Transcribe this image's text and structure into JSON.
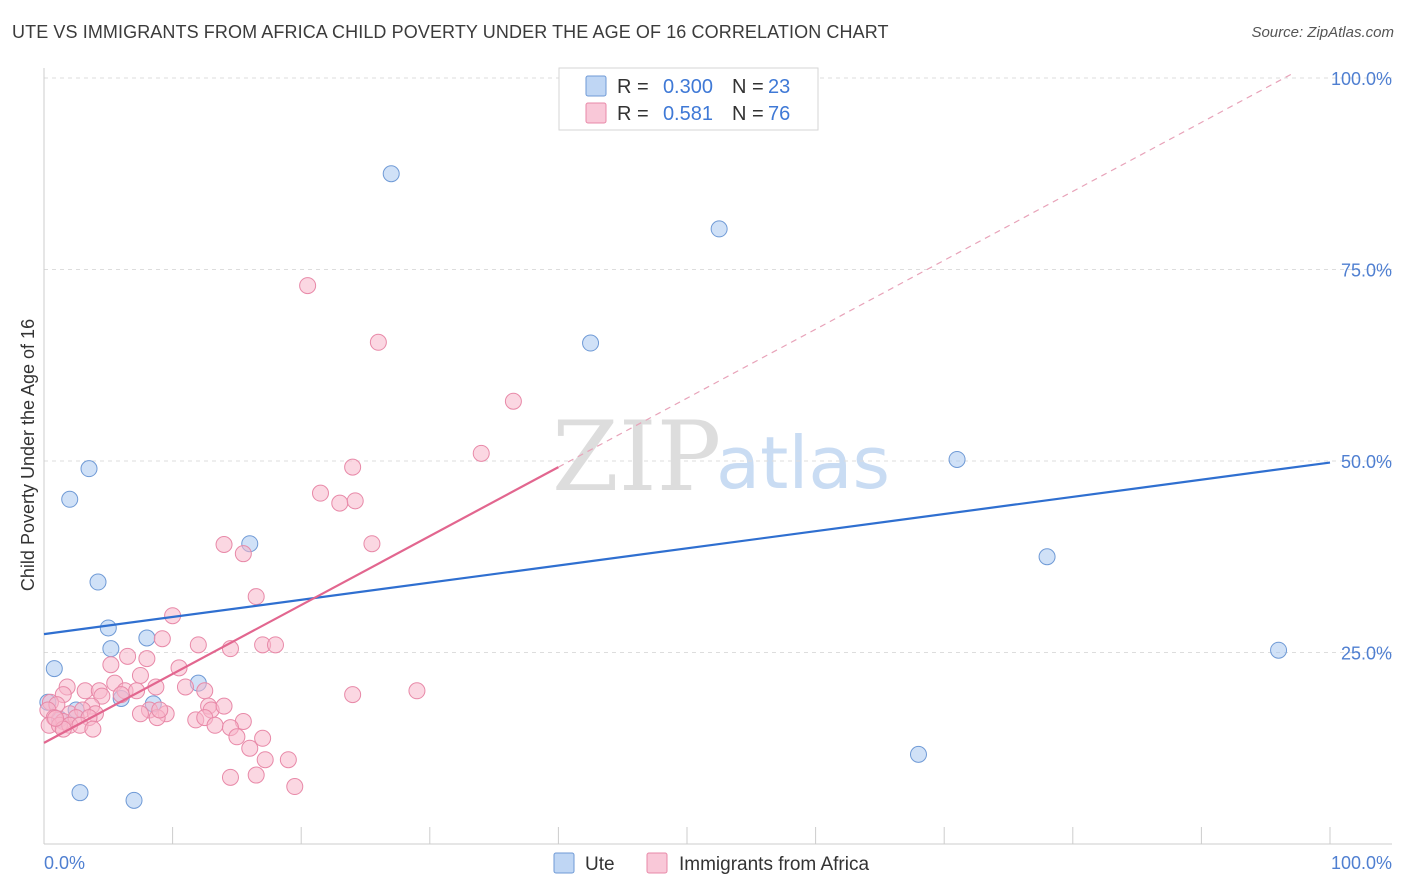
{
  "header": {
    "title": "UTE VS IMMIGRANTS FROM AFRICA CHILD POVERTY UNDER THE AGE OF 16 CORRELATION CHART",
    "source": "Source: ZipAtlas.com"
  },
  "watermark": {
    "zip": "ZIP",
    "atlas": "atlas"
  },
  "chart_data": {
    "type": "scatter",
    "title": "UTE VS IMMIGRANTS FROM AFRICA CHILD POVERTY UNDER THE AGE OF 16 CORRELATION CHART",
    "xlabel": "",
    "ylabel": "Child Poverty Under the Age of 16",
    "xlim": [
      0,
      100
    ],
    "ylim": [
      0,
      100
    ],
    "x_tick_labels": {
      "min": "0.0%",
      "max": "100.0%"
    },
    "y_ticks": [
      {
        "value": 25,
        "label": "25.0%"
      },
      {
        "value": 50,
        "label": "50.0%"
      },
      {
        "value": 75,
        "label": "75.0%"
      },
      {
        "value": 100,
        "label": "100.0%"
      }
    ],
    "grid": true,
    "legend": {
      "position": "top-center",
      "rows": [
        {
          "r_label": "R =",
          "r_value": "0.300",
          "n_label": "N =",
          "n_value": "23"
        },
        {
          "r_label": "R =",
          "r_value": "0.581",
          "n_label": "N =",
          "n_value": "76"
        }
      ]
    },
    "series": [
      {
        "name": "Ute",
        "color": "#a9c8f0",
        "stroke": "#6f9ad6",
        "line_color": "#2f6fd0",
        "trend": {
          "x0": 0,
          "y0": 27.4,
          "x1": 100,
          "y1": 49.8,
          "dashed_to": null
        },
        "points": [
          [
            27,
            87.5
          ],
          [
            52.5,
            80.3
          ],
          [
            42.5,
            65.4
          ],
          [
            71,
            50.2
          ],
          [
            3.5,
            49.0
          ],
          [
            2,
            45.0
          ],
          [
            4.2,
            34.2
          ],
          [
            16,
            39.2
          ],
          [
            78,
            37.5
          ],
          [
            96,
            25.3
          ],
          [
            5,
            28.2
          ],
          [
            8,
            26.9
          ],
          [
            5.2,
            25.5
          ],
          [
            0.8,
            22.9
          ],
          [
            12,
            21.0
          ],
          [
            6,
            19.0
          ],
          [
            8.5,
            18.3
          ],
          [
            2.5,
            17.5
          ],
          [
            0.3,
            18.5
          ],
          [
            1.2,
            16.3
          ],
          [
            68,
            11.7
          ],
          [
            2.8,
            6.7
          ],
          [
            7,
            5.7
          ]
        ]
      },
      {
        "name": "Immigrants from Africa",
        "color": "#f7b6cb",
        "stroke": "#e889a8",
        "line_color": "#e2668f",
        "trend": {
          "x0": 0,
          "y0": 13.2,
          "x1": 40,
          "y1": 49.2,
          "dashed_x1": 97,
          "dashed_y1": 100.5
        },
        "points": [
          [
            20.5,
            72.9
          ],
          [
            26,
            65.5
          ],
          [
            36.5,
            57.8
          ],
          [
            34,
            51.0
          ],
          [
            24,
            49.2
          ],
          [
            21.5,
            45.8
          ],
          [
            23,
            44.5
          ],
          [
            24.2,
            44.8
          ],
          [
            14,
            39.1
          ],
          [
            15.5,
            37.9
          ],
          [
            25.5,
            39.2
          ],
          [
            16.5,
            32.3
          ],
          [
            10,
            29.8
          ],
          [
            9.2,
            26.8
          ],
          [
            12,
            26.0
          ],
          [
            14.5,
            25.5
          ],
          [
            17,
            26.0
          ],
          [
            18,
            26.0
          ],
          [
            8,
            24.2
          ],
          [
            6.5,
            24.5
          ],
          [
            5.2,
            23.4
          ],
          [
            10.5,
            23.0
          ],
          [
            7.5,
            22.0
          ],
          [
            5.5,
            21.0
          ],
          [
            8.7,
            20.5
          ],
          [
            11,
            20.5
          ],
          [
            12.5,
            20.0
          ],
          [
            1.8,
            20.5
          ],
          [
            3.2,
            20.0
          ],
          [
            4.3,
            20.0
          ],
          [
            6.3,
            20.0
          ],
          [
            7.2,
            20.0
          ],
          [
            1.5,
            19.5
          ],
          [
            24,
            19.5
          ],
          [
            29,
            20.0
          ],
          [
            4.5,
            19.3
          ],
          [
            6.0,
            19.5
          ],
          [
            0.5,
            18.5
          ],
          [
            1.0,
            18.2
          ],
          [
            3.7,
            18.0
          ],
          [
            12.8,
            18.0
          ],
          [
            0.3,
            17.5
          ],
          [
            8.2,
            17.5
          ],
          [
            13,
            17.5
          ],
          [
            14,
            18.0
          ],
          [
            2.0,
            17.0
          ],
          [
            3.0,
            17.5
          ],
          [
            4.0,
            17.0
          ],
          [
            7.5,
            17.0
          ],
          [
            9.5,
            17.0
          ],
          [
            0.8,
            16.5
          ],
          [
            1.5,
            16.0
          ],
          [
            2.5,
            16.5
          ],
          [
            3.5,
            16.5
          ],
          [
            8.8,
            16.5
          ],
          [
            11.8,
            16.2
          ],
          [
            12.5,
            16.5
          ],
          [
            0.4,
            15.5
          ],
          [
            1.2,
            15.5
          ],
          [
            2.0,
            15.5
          ],
          [
            1.5,
            15.0
          ],
          [
            2.8,
            15.5
          ],
          [
            3.8,
            15.0
          ],
          [
            13.3,
            15.5
          ],
          [
            15.5,
            16.0
          ],
          [
            14.5,
            15.2
          ],
          [
            15.0,
            14.0
          ],
          [
            17,
            13.8
          ],
          [
            16,
            12.5
          ],
          [
            17.2,
            11.0
          ],
          [
            19,
            11.0
          ],
          [
            16.5,
            9.0
          ],
          [
            14.5,
            8.7
          ],
          [
            19.5,
            7.5
          ],
          [
            9,
            17.5
          ],
          [
            0.9,
            16.4
          ]
        ]
      }
    ]
  },
  "bottom_legend": {
    "items": [
      {
        "label": "Ute"
      },
      {
        "label": "Immigrants from Africa"
      }
    ]
  }
}
